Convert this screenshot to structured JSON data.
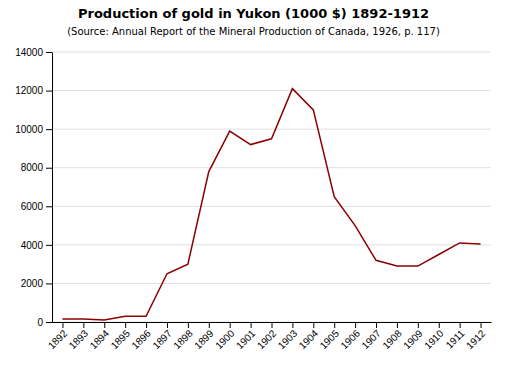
{
  "chart_data": {
    "type": "line",
    "title": "Production of gold in Yukon  (1000 $) 1892-1912",
    "subtitle": "(Source: Annual Report of the Mineral Production  of Canada, 1926, p. 117)",
    "x": [
      1892,
      1893,
      1894,
      1895,
      1896,
      1897,
      1898,
      1899,
      1900,
      1901,
      1902,
      1903,
      1904,
      1905,
      1906,
      1907,
      1908,
      1909,
      1910,
      1911,
      1912
    ],
    "values": [
      150,
      150,
      100,
      300,
      300,
      2500,
      3000,
      7800,
      9900,
      9200,
      9500,
      12100,
      11000,
      6500,
      5000,
      3200,
      2900,
      2900,
      3500,
      4100,
      4050
    ],
    "color": "#8B0000",
    "xlim": [
      1891.5,
      1912.5
    ],
    "xticks": [
      1892,
      1893,
      1894,
      1895,
      1896,
      1897,
      1898,
      1899,
      1900,
      1901,
      1902,
      1903,
      1904,
      1905,
      1906,
      1907,
      1908,
      1909,
      1910,
      1911,
      1912
    ],
    "ylim": [
      0,
      14000
    ],
    "yticks": [
      0,
      2000,
      4000,
      6000,
      8000,
      10000,
      12000,
      14000
    ],
    "grid": true
  }
}
